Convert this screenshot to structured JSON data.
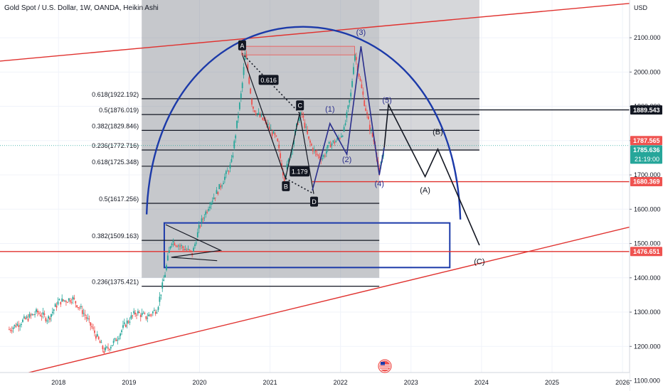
{
  "header": {
    "title": "Gold Spot / U.S. Dollar, 1W, OANDA, Heikin Ashi"
  },
  "axis": {
    "currency": "USD"
  },
  "colors": {
    "bull": "#26a69a",
    "bear": "#ef5350",
    "arc": "#1c3aa9",
    "trend": "#e0322f",
    "hline": "#e0322f",
    "fib": "#131722",
    "wave_blue": "#2a2e8c",
    "wave_path": "#131722"
  },
  "badges": {
    "upper_label": "1889.543",
    "current_red": "1787.565",
    "current_green": "1785.636",
    "countdown": "21:19:00",
    "support_red": "1680.369",
    "low_red": "1476.651"
  },
  "icons": {
    "flag": "us-flag-icon"
  },
  "chart_data": {
    "type": "candlestick",
    "title": "Gold Spot / U.S. Dollar, 1W, OANDA, Heikin Ashi",
    "ylabel": "USD",
    "ylim": [
      1070,
      2210
    ],
    "x_ticks": [
      "2018",
      "2019",
      "2020",
      "2021",
      "2022",
      "2023",
      "2024",
      "2025",
      "2026"
    ],
    "y_ticks": [
      {
        "value": 2100,
        "label": "2100.000"
      },
      {
        "value": 2000,
        "label": "2000.000"
      },
      {
        "value": 1900,
        "label": "1900.000"
      },
      {
        "value": 1800,
        "label": "1800.000"
      },
      {
        "value": 1700,
        "label": "1700.000"
      },
      {
        "value": 1600,
        "label": "1600.000"
      },
      {
        "value": 1500,
        "label": "1500.000"
      },
      {
        "value": 1400,
        "label": "1400.000"
      },
      {
        "value": 1300,
        "label": "1300.000"
      },
      {
        "value": 1200,
        "label": "1200.000"
      },
      {
        "value": 1100,
        "label": "1100.000"
      }
    ],
    "price_path": [
      [
        2017.3,
        1250
      ],
      [
        2017.5,
        1275
      ],
      [
        2017.7,
        1300
      ],
      [
        2017.85,
        1280
      ],
      [
        2018.0,
        1330
      ],
      [
        2018.2,
        1340
      ],
      [
        2018.35,
        1300
      ],
      [
        2018.5,
        1245
      ],
      [
        2018.65,
        1185
      ],
      [
        2018.8,
        1215
      ],
      [
        2018.95,
        1265
      ],
      [
        2019.1,
        1300
      ],
      [
        2019.25,
        1285
      ],
      [
        2019.4,
        1310
      ],
      [
        2019.5,
        1400
      ],
      [
        2019.6,
        1510
      ],
      [
        2019.75,
        1490
      ],
      [
        2019.9,
        1470
      ],
      [
        2020.0,
        1550
      ],
      [
        2020.15,
        1620
      ],
      [
        2020.25,
        1650
      ],
      [
        2020.45,
        1730
      ],
      [
        2020.6,
        1950
      ],
      [
        2020.65,
        2060
      ],
      [
        2020.75,
        1900
      ],
      [
        2020.85,
        1870
      ],
      [
        2020.95,
        1850
      ],
      [
        2021.1,
        1800
      ],
      [
        2021.2,
        1690
      ],
      [
        2021.3,
        1770
      ],
      [
        2021.4,
        1860
      ],
      [
        2021.45,
        1880
      ],
      [
        2021.55,
        1800
      ],
      [
        2021.65,
        1760
      ],
      [
        2021.75,
        1750
      ],
      [
        2021.85,
        1790
      ],
      [
        2021.95,
        1800
      ],
      [
        2022.05,
        1830
      ],
      [
        2022.15,
        1940
      ],
      [
        2022.2,
        2060
      ],
      [
        2022.3,
        1950
      ],
      [
        2022.4,
        1850
      ],
      [
        2022.5,
        1780
      ],
      [
        2022.55,
        1700
      ],
      [
        2022.62,
        1780
      ]
    ],
    "fib_levels": [
      {
        "label": "0.618(1922.192)",
        "value": 1922.192
      },
      {
        "label": "0.5(1876.019)",
        "value": 1876.019
      },
      {
        "label": "0.382(1829.846)",
        "value": 1829.846
      },
      {
        "label": "0.236(1772.716)",
        "value": 1772.716
      },
      {
        "label": "0.618(1725.348)",
        "value": 1725.348
      },
      {
        "label": "0.5(1617.256)",
        "value": 1617.256
      },
      {
        "label": "0.382(1509.163)",
        "value": 1509.163
      },
      {
        "label": "0.236(1375.421)",
        "value": 1375.421
      }
    ],
    "horizontal_lines": [
      {
        "value": 1889.543,
        "color": "#131722"
      },
      {
        "value": 1680.369,
        "color": "#e0322f"
      },
      {
        "value": 1476.651,
        "color": "#e0322f"
      }
    ],
    "abcd_points": [
      {
        "label": "A",
        "x": 2020.6,
        "y": 2055
      },
      {
        "label": "B",
        "x": 2021.22,
        "y": 1690
      },
      {
        "label": "C",
        "x": 2021.42,
        "y": 1880
      },
      {
        "label": "D",
        "x": 2021.62,
        "y": 1645
      }
    ],
    "ratio_labels": [
      {
        "label": "0.616",
        "x": 2020.98,
        "y": 1975
      },
      {
        "label": "1.179",
        "x": 2021.42,
        "y": 1708
      }
    ],
    "wave_labels": [
      {
        "label": "(1)",
        "x": 2021.85,
        "y": 1885
      },
      {
        "label": "(2)",
        "x": 2022.09,
        "y": 1737
      },
      {
        "label": "(3)",
        "x": 2022.29,
        "y": 2108
      },
      {
        "label": "(4)",
        "x": 2022.55,
        "y": 1667
      },
      {
        "label": "(5)",
        "x": 2022.66,
        "y": 1910
      },
      {
        "label": "(A)",
        "x": 2023.2,
        "y": 1648
      },
      {
        "label": "(B)",
        "x": 2023.38,
        "y": 1818
      },
      {
        "label": "(C)",
        "x": 2023.97,
        "y": 1440
      }
    ],
    "projection": [
      [
        2022.62,
        1780
      ],
      [
        2022.68,
        1905
      ],
      [
        2023.2,
        1695
      ],
      [
        2023.38,
        1775
      ],
      [
        2023.97,
        1495
      ]
    ],
    "arc": {
      "x_start": 2019.25,
      "x_end": 2023.7,
      "y_start": 1585,
      "y_peak": 2125,
      "x_peak": 2021.5,
      "y_end": 1570
    },
    "trendlines": [
      {
        "x1": 2016.8,
        "y1": 2025,
        "x2": 2026.1,
        "y2": 2200
      },
      {
        "x1": 2016.8,
        "y1": 1085,
        "x2": 2026.1,
        "y2": 1548
      }
    ],
    "boxes": [
      {
        "x1": 2019.18,
        "x2": 2022.55,
        "y1": 1400,
        "y2": 2210,
        "shade": "dark"
      },
      {
        "x1": 2022.55,
        "x2": 2023.97,
        "y1": 1770,
        "y2": 2210,
        "shade": "light"
      },
      {
        "x1": 2019.5,
        "x2": 2023.55,
        "y1": 1430,
        "y2": 1560,
        "shade": "outline"
      }
    ]
  }
}
